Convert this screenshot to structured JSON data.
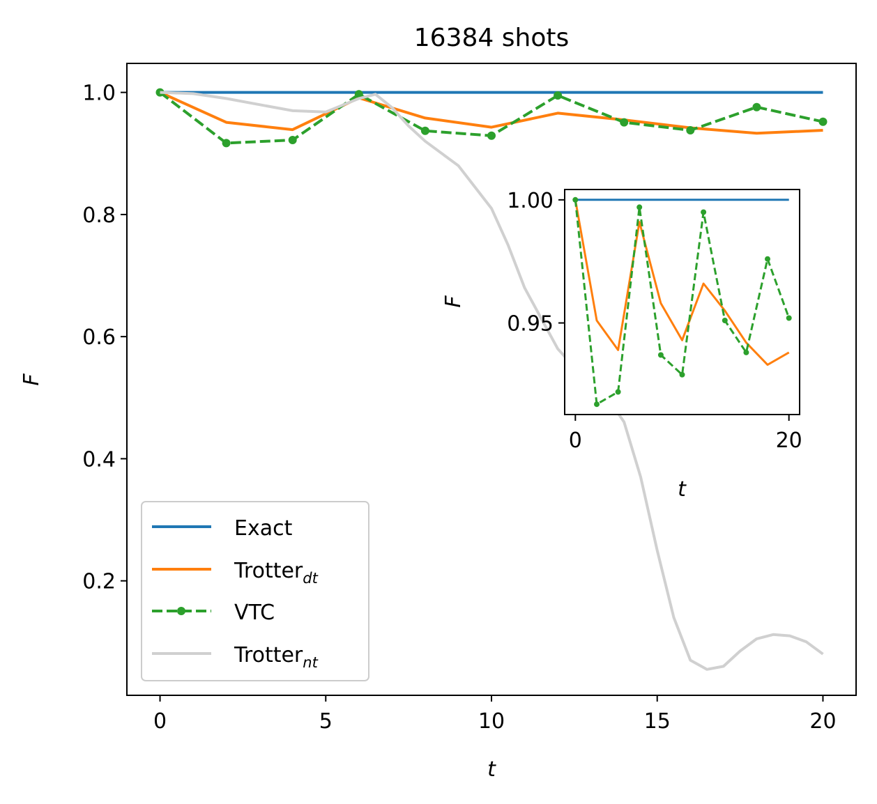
{
  "chart_data": [
    {
      "type": "line",
      "title": "16384 shots",
      "xlabel": "t",
      "ylabel": "F",
      "xlim": [
        -1,
        21
      ],
      "ylim": [
        0.0125,
        1.0475
      ],
      "xticks": [
        0,
        5,
        10,
        15,
        20
      ],
      "xtick_labels": [
        "0",
        "5",
        "10",
        "15",
        "20"
      ],
      "yticks": [
        0.2,
        0.4,
        0.6,
        0.8,
        1.0
      ],
      "ytick_labels": [
        "0.2",
        "0.4",
        "0.6",
        "0.8",
        "1.0"
      ],
      "grid": false,
      "legend_position": "lower-left",
      "series": [
        {
          "name": "Exact",
          "color": "#1f77b4",
          "style": "solid",
          "x": [
            0,
            20
          ],
          "y": [
            1.0,
            1.0
          ]
        },
        {
          "name": "Trotter",
          "name_sub": "dt",
          "color": "#ff7f0e",
          "style": "solid",
          "x": [
            0,
            2,
            4,
            6,
            8,
            10,
            12,
            14,
            16,
            18,
            20
          ],
          "y": [
            1.0,
            0.951,
            0.939,
            0.991,
            0.958,
            0.943,
            0.966,
            0.955,
            0.942,
            0.933,
            0.938
          ]
        },
        {
          "name": "VTC",
          "color": "#2ca02c",
          "style": "dashed",
          "marker": "circle",
          "x": [
            0,
            2,
            4,
            6,
            8,
            10,
            12,
            14,
            16,
            18,
            20
          ],
          "y": [
            1.0,
            0.917,
            0.922,
            0.997,
            0.937,
            0.929,
            0.995,
            0.951,
            0.938,
            0.976,
            0.952
          ]
        },
        {
          "name": "Trotter",
          "name_sub": "nt",
          "color": "#d0d0d0",
          "style": "solid",
          "x": [
            0,
            1,
            2,
            3,
            4,
            5,
            6,
            6.5,
            7,
            7.5,
            8,
            9,
            10,
            10.5,
            11,
            11.5,
            12,
            12.5,
            13,
            13.5,
            14,
            14.5,
            15,
            15.5,
            16,
            16.5,
            17,
            17.5,
            18,
            18.5,
            19,
            19.5,
            20
          ],
          "y": [
            1.0,
            0.998,
            0.99,
            0.98,
            0.97,
            0.968,
            0.99,
            0.997,
            0.975,
            0.945,
            0.92,
            0.88,
            0.81,
            0.75,
            0.68,
            0.63,
            0.58,
            0.55,
            0.53,
            0.5,
            0.46,
            0.37,
            0.25,
            0.14,
            0.07,
            0.055,
            0.06,
            0.085,
            0.105,
            0.112,
            0.11,
            0.1,
            0.08
          ]
        }
      ]
    },
    {
      "type": "line",
      "title": "",
      "xlabel": "t",
      "ylabel": "F",
      "xlim": [
        -1,
        21
      ],
      "ylim": [
        0.9128,
        1.0042
      ],
      "xticks": [
        0,
        20
      ],
      "xtick_labels": [
        "0",
        "20"
      ],
      "yticks": [
        0.95,
        1.0
      ],
      "ytick_labels": [
        "0.95",
        "1.00"
      ],
      "grid": false,
      "series": [
        {
          "name": "Exact",
          "color": "#1f77b4",
          "style": "solid",
          "x": [
            0,
            20
          ],
          "y": [
            1.0,
            1.0
          ]
        },
        {
          "name": "Trotter",
          "name_sub": "dt",
          "color": "#ff7f0e",
          "style": "solid",
          "x": [
            0,
            2,
            4,
            6,
            8,
            10,
            12,
            14,
            16,
            18,
            20
          ],
          "y": [
            1.0,
            0.951,
            0.939,
            0.991,
            0.958,
            0.943,
            0.966,
            0.955,
            0.942,
            0.933,
            0.938
          ]
        },
        {
          "name": "VTC",
          "color": "#2ca02c",
          "style": "dashed",
          "marker": "circle",
          "x": [
            0,
            2,
            4,
            6,
            8,
            10,
            12,
            14,
            16,
            18,
            20
          ],
          "y": [
            1.0,
            0.917,
            0.922,
            0.997,
            0.937,
            0.929,
            0.995,
            0.951,
            0.938,
            0.976,
            0.952
          ]
        }
      ]
    }
  ]
}
